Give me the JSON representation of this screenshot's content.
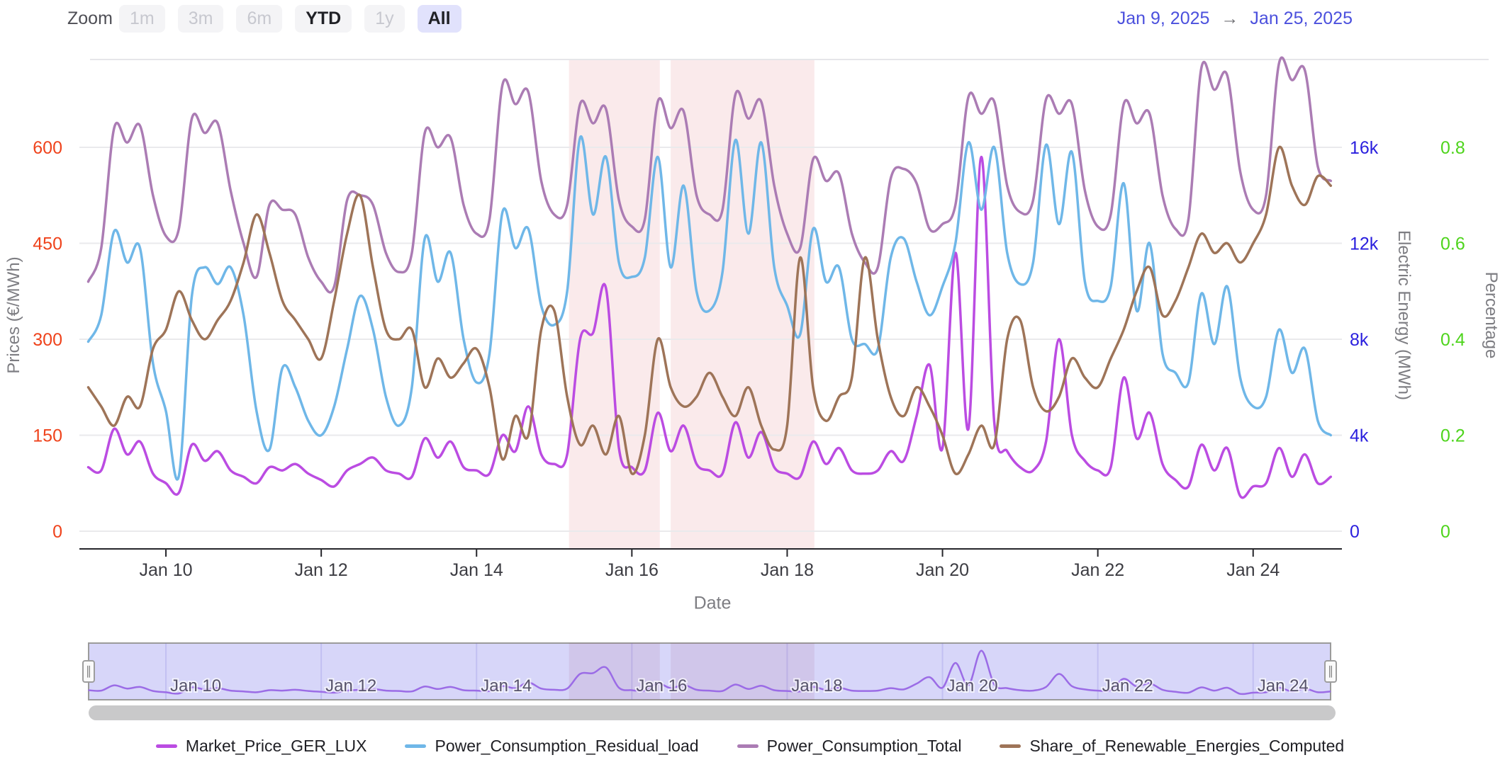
{
  "topbar": {
    "zoom_label": "Zoom",
    "buttons": [
      {
        "label": "1m",
        "state": "disabled"
      },
      {
        "label": "3m",
        "state": "disabled"
      },
      {
        "label": "6m",
        "state": "disabled"
      },
      {
        "label": "YTD",
        "state": "enabled"
      },
      {
        "label": "1y",
        "state": "disabled"
      },
      {
        "label": "All",
        "state": "active"
      }
    ],
    "date_range": {
      "start": "Jan 9, 2025",
      "arrow": "→",
      "end": "Jan 25, 2025"
    }
  },
  "navigator": {
    "handle_glyph": "∥",
    "background": "#d7d6f9",
    "line_color": "#9b6ce6",
    "labels": [
      "Jan 10",
      "Jan 12",
      "Jan 14",
      "Jan 16",
      "Jan 18",
      "Jan 20",
      "Jan 22",
      "Jan 24"
    ]
  },
  "legend": [
    {
      "label": "Market_Price_GER_LUX",
      "color": "#bb4ce2"
    },
    {
      "label": "Power_Consumption_Residual_load",
      "color": "#6fb7e8"
    },
    {
      "label": "Power_Consumption_Total",
      "color": "#ab7cb4"
    },
    {
      "label": "Share_of_Renewable_Energies_Computed",
      "color": "#9e7458"
    }
  ],
  "chart_data": {
    "type": "line",
    "x_start": "Jan 9, 2025 00:00",
    "x_end": "Jan 25, 2025 00:00",
    "x_step_hours": 4,
    "grid": true,
    "x_axis": {
      "title": "Date",
      "ticks": [
        {
          "label": "Jan 10",
          "day": 1
        },
        {
          "label": "Jan 12",
          "day": 3
        },
        {
          "label": "Jan 14",
          "day": 5
        },
        {
          "label": "Jan 16",
          "day": 7
        },
        {
          "label": "Jan 18",
          "day": 9
        },
        {
          "label": "Jan 20",
          "day": 11
        },
        {
          "label": "Jan 22",
          "day": 13
        },
        {
          "label": "Jan 24",
          "day": 15
        }
      ]
    },
    "y_axes": [
      {
        "id": "price",
        "title": "Prices (€/MWh)",
        "color": "#ef431c",
        "side": "left",
        "range": [
          0,
          750
        ],
        "ticks": [
          {
            "label": "0",
            "value": 0
          },
          {
            "label": "150",
            "value": 150
          },
          {
            "label": "300",
            "value": 300
          },
          {
            "label": "450",
            "value": 450
          },
          {
            "label": "600",
            "value": 600
          }
        ]
      },
      {
        "id": "energy",
        "title": "Electric Energy (MWh)",
        "color": "#2a1fde",
        "side": "right",
        "range": [
          0,
          20000
        ],
        "ticks": [
          {
            "label": "0",
            "value": 0
          },
          {
            "label": "4k",
            "value": 4000
          },
          {
            "label": "8k",
            "value": 8000
          },
          {
            "label": "12k",
            "value": 12000
          },
          {
            "label": "16k",
            "value": 16000
          }
        ]
      },
      {
        "id": "pct",
        "title": "Percentage",
        "color": "#4ed41c",
        "side": "right",
        "range": [
          0,
          1
        ],
        "ticks": [
          {
            "label": "0",
            "value": 0
          },
          {
            "label": "0.2",
            "value": 0.2
          },
          {
            "label": "0.4",
            "value": 0.4
          },
          {
            "label": "0.6",
            "value": 0.6
          },
          {
            "label": "0.8",
            "value": 0.8
          }
        ]
      }
    ],
    "highlight_bands": [
      {
        "from_day": 6.19,
        "to_day": 7.36
      },
      {
        "from_day": 7.5,
        "to_day": 9.35
      }
    ],
    "band_color": "rgba(214,80,92,0.12)",
    "series": [
      {
        "name": "Market_Price_GER_LUX",
        "axis": "price",
        "color": "#bb4ce2",
        "values": [
          100,
          95,
          160,
          120,
          140,
          90,
          75,
          60,
          135,
          110,
          125,
          95,
          85,
          75,
          100,
          95,
          105,
          90,
          80,
          70,
          95,
          105,
          115,
          95,
          90,
          85,
          145,
          115,
          140,
          100,
          95,
          90,
          150,
          125,
          195,
          120,
          105,
          120,
          300,
          310,
          380,
          130,
          100,
          95,
          185,
          125,
          165,
          105,
          95,
          90,
          170,
          115,
          155,
          100,
          90,
          85,
          140,
          105,
          130,
          95,
          90,
          95,
          125,
          110,
          180,
          260,
          130,
          435,
          160,
          585,
          170,
          125,
          100,
          95,
          140,
          300,
          150,
          110,
          95,
          100,
          240,
          145,
          185,
          105,
          80,
          70,
          135,
          95,
          130,
          55,
          70,
          75,
          130,
          85,
          120,
          75,
          85
        ]
      },
      {
        "name": "Power_Consumption_Residual_load",
        "axis": "energy",
        "color": "#6fb7e8",
        "values": [
          7900,
          9000,
          12500,
          11200,
          11800,
          7000,
          5000,
          2300,
          9800,
          11000,
          10300,
          11000,
          9000,
          5000,
          3400,
          6800,
          6000,
          4600,
          4000,
          5200,
          7600,
          9800,
          8400,
          5600,
          4400,
          6000,
          12200,
          10400,
          11600,
          8000,
          6200,
          7400,
          13300,
          11800,
          12600,
          9400,
          8600,
          10000,
          16400,
          13200,
          15600,
          11200,
          10600,
          11400,
          15600,
          11000,
          14400,
          10000,
          9200,
          10800,
          16300,
          12400,
          16200,
          11000,
          9400,
          8200,
          12600,
          10400,
          11000,
          8000,
          7800,
          7600,
          11400,
          12200,
          10400,
          9000,
          10200,
          12000,
          16200,
          13400,
          16000,
          11600,
          10300,
          11200,
          16100,
          12800,
          15800,
          10400,
          9600,
          10200,
          14500,
          9200,
          12000,
          7400,
          6600,
          6200,
          9900,
          7800,
          10200,
          6400,
          5200,
          5600,
          8400,
          6600,
          7600,
          4600,
          4000
        ]
      },
      {
        "name": "Power_Consumption_Total",
        "axis": "energy",
        "color": "#ab7cb4",
        "values": [
          10400,
          11800,
          16800,
          16200,
          16900,
          14000,
          12300,
          12600,
          17200,
          16600,
          17000,
          14200,
          12000,
          10600,
          13600,
          13400,
          13200,
          11400,
          10400,
          10200,
          13800,
          14000,
          13600,
          11600,
          10800,
          11600,
          16600,
          16000,
          16400,
          13600,
          12400,
          13000,
          18600,
          17800,
          18300,
          14600,
          13200,
          13600,
          17800,
          17000,
          17600,
          13800,
          12700,
          13000,
          17900,
          16800,
          17500,
          14000,
          13200,
          13400,
          18200,
          17200,
          17900,
          14400,
          12400,
          11800,
          15500,
          14600,
          14900,
          12400,
          11200,
          11000,
          14700,
          15100,
          14500,
          12600,
          12800,
          13600,
          18100,
          17400,
          17900,
          14400,
          13300,
          13800,
          18000,
          17400,
          17800,
          14200,
          12700,
          13200,
          17800,
          17000,
          17400,
          14000,
          12600,
          13000,
          19300,
          18400,
          19000,
          15000,
          13400,
          14000,
          19500,
          18800,
          19200,
          15200,
          14600
        ]
      },
      {
        "name": "Share_of_Renewable_Energies_Computed",
        "axis": "pct",
        "color": "#9e7458",
        "values": [
          0.3,
          0.26,
          0.22,
          0.28,
          0.26,
          0.38,
          0.42,
          0.5,
          0.44,
          0.4,
          0.44,
          0.48,
          0.56,
          0.66,
          0.58,
          0.48,
          0.44,
          0.4,
          0.36,
          0.48,
          0.62,
          0.7,
          0.55,
          0.42,
          0.4,
          0.42,
          0.3,
          0.36,
          0.32,
          0.35,
          0.38,
          0.3,
          0.15,
          0.24,
          0.2,
          0.42,
          0.46,
          0.28,
          0.18,
          0.22,
          0.16,
          0.24,
          0.12,
          0.2,
          0.4,
          0.3,
          0.26,
          0.28,
          0.33,
          0.28,
          0.24,
          0.3,
          0.22,
          0.17,
          0.22,
          0.57,
          0.3,
          0.23,
          0.28,
          0.32,
          0.57,
          0.4,
          0.28,
          0.24,
          0.3,
          0.26,
          0.2,
          0.12,
          0.16,
          0.22,
          0.18,
          0.4,
          0.44,
          0.3,
          0.25,
          0.28,
          0.36,
          0.32,
          0.3,
          0.36,
          0.42,
          0.5,
          0.55,
          0.45,
          0.48,
          0.55,
          0.62,
          0.58,
          0.6,
          0.56,
          0.6,
          0.66,
          0.8,
          0.72,
          0.68,
          0.74,
          0.72
        ]
      }
    ]
  }
}
